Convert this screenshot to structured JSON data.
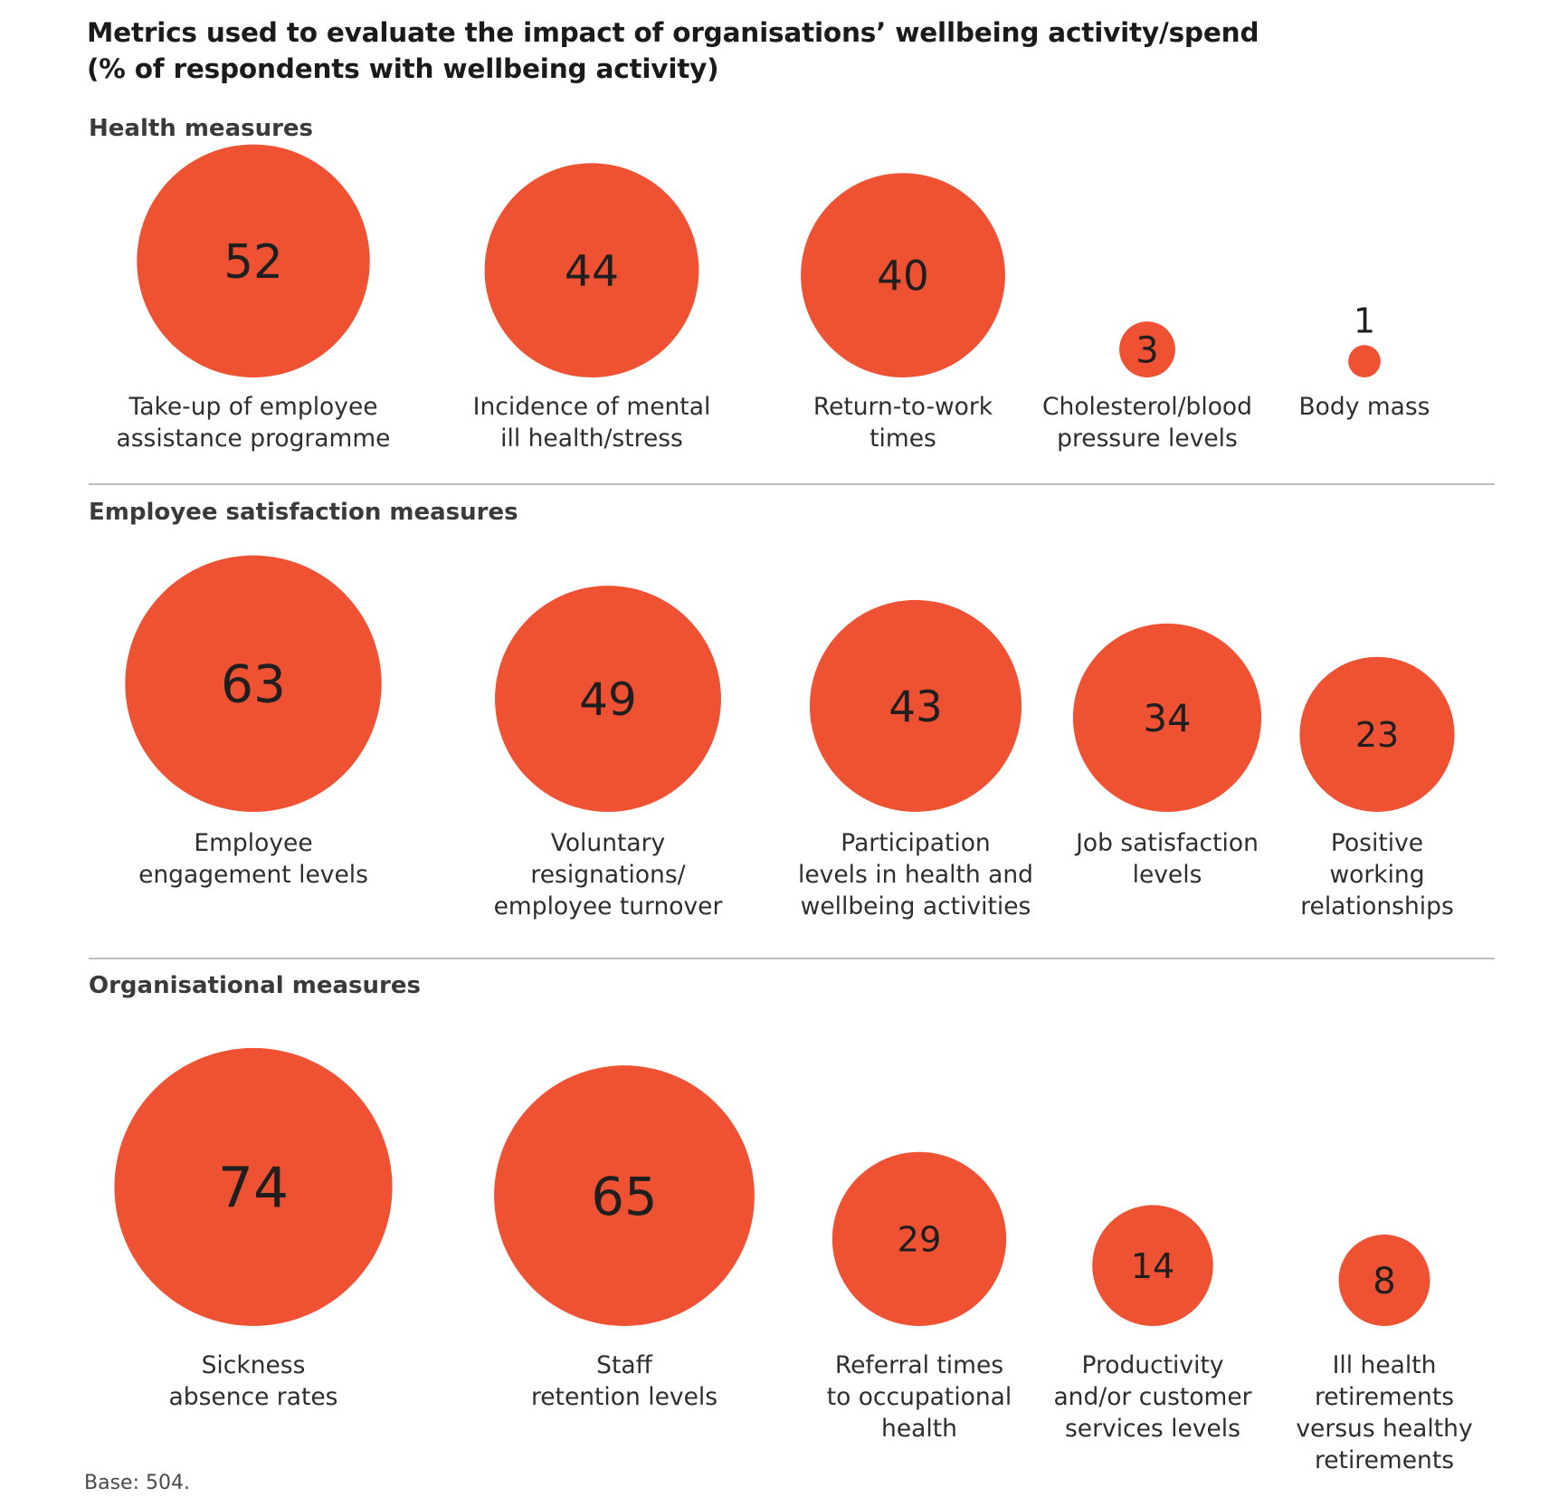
{
  "chart_data": {
    "type": "bubble",
    "title": "Metrics used to evaluate the impact of organisations’ wellbeing activity/spend",
    "subtitle": "(% of respondents with wellbeing activity)",
    "bubble_color": "#EF5233",
    "groups": [
      {
        "name": "Health measures",
        "items": [
          {
            "label": [
              "Take-up of employee",
              "assistance programme"
            ],
            "value": 52
          },
          {
            "label": [
              "Incidence of mental",
              "ill health/stress"
            ],
            "value": 44
          },
          {
            "label": [
              "Return-to-work",
              "times"
            ],
            "value": 40
          },
          {
            "label": [
              "Cholesterol/blood",
              "pressure levels"
            ],
            "value": 3
          },
          {
            "label": [
              "Body mass"
            ],
            "value": 1
          }
        ]
      },
      {
        "name": "Employee satisfaction measures",
        "items": [
          {
            "label": [
              "Employee",
              "engagement levels"
            ],
            "value": 63
          },
          {
            "label": [
              "Voluntary",
              "resignations/",
              "employee turnover"
            ],
            "value": 49
          },
          {
            "label": [
              "Participation",
              "levels in health and",
              "wellbeing activities"
            ],
            "value": 43
          },
          {
            "label": [
              "Job satisfaction",
              "levels"
            ],
            "value": 34
          },
          {
            "label": [
              "Positive",
              "working",
              "relationships"
            ],
            "value": 23
          }
        ]
      },
      {
        "name": "Organisational measures",
        "items": [
          {
            "label": [
              "Sickness",
              "absence rates"
            ],
            "value": 74
          },
          {
            "label": [
              "Staff",
              "retention levels"
            ],
            "value": 65
          },
          {
            "label": [
              "Referral times",
              "to occupational",
              "health"
            ],
            "value": 29
          },
          {
            "label": [
              "Productivity",
              "and/or customer",
              "services levels"
            ],
            "value": 14
          },
          {
            "label": [
              "Ill health",
              "retirements",
              "versus healthy",
              "retirements"
            ],
            "value": 8
          }
        ]
      }
    ],
    "note": "Base: 504."
  }
}
